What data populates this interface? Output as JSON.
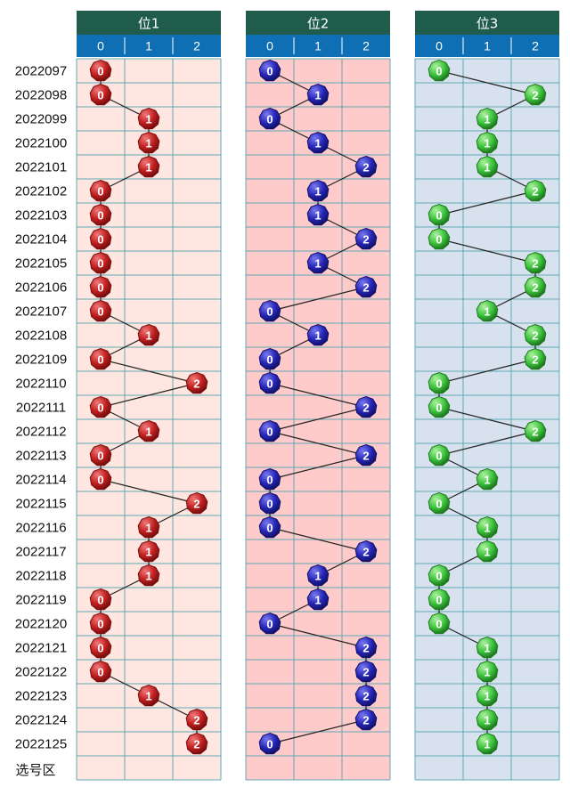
{
  "chart_data": {
    "type": "table",
    "footer_label": "选号区",
    "digit_headers": [
      "0",
      "1",
      "2"
    ],
    "periods": [
      "2022097",
      "2022098",
      "2022099",
      "2022100",
      "2022101",
      "2022102",
      "2022103",
      "2022104",
      "2022105",
      "2022106",
      "2022107",
      "2022108",
      "2022109",
      "2022110",
      "2022111",
      "2022112",
      "2022113",
      "2022114",
      "2022115",
      "2022116",
      "2022117",
      "2022118",
      "2022119",
      "2022120",
      "2022121",
      "2022122",
      "2022123",
      "2022124",
      "2022125"
    ],
    "series": [
      {
        "name": "位1",
        "values": [
          0,
          0,
          1,
          1,
          1,
          0,
          0,
          0,
          0,
          0,
          0,
          1,
          0,
          2,
          0,
          1,
          0,
          0,
          2,
          1,
          1,
          1,
          0,
          0,
          0,
          0,
          1,
          2,
          2
        ]
      },
      {
        "name": "位2",
        "values": [
          0,
          1,
          0,
          1,
          2,
          1,
          1,
          2,
          1,
          2,
          0,
          1,
          0,
          0,
          2,
          0,
          2,
          0,
          0,
          0,
          2,
          1,
          1,
          0,
          2,
          2,
          2,
          2,
          0
        ]
      },
      {
        "name": "位3",
        "values": [
          0,
          2,
          1,
          1,
          1,
          2,
          0,
          0,
          2,
          2,
          1,
          2,
          2,
          0,
          0,
          2,
          0,
          1,
          0,
          1,
          1,
          0,
          0,
          0,
          1,
          1,
          1,
          1,
          1
        ]
      }
    ]
  },
  "colors": {
    "header_title_bg": "#1f5c4c",
    "header_digit_bg": "#0f6fb5",
    "grid_line": "#5fa9b5",
    "panel_bg": [
      "#ffe6e0",
      "#ffcaca",
      "#d8e2ee"
    ],
    "ball": [
      "#c21f1f",
      "#2626b8",
      "#3cc43c"
    ],
    "ball_light": [
      "#f07a7a",
      "#7a7af0",
      "#aef0a0"
    ],
    "ball_stroke": [
      "#7a0e0e",
      "#12126e",
      "#1f7a1f"
    ]
  }
}
